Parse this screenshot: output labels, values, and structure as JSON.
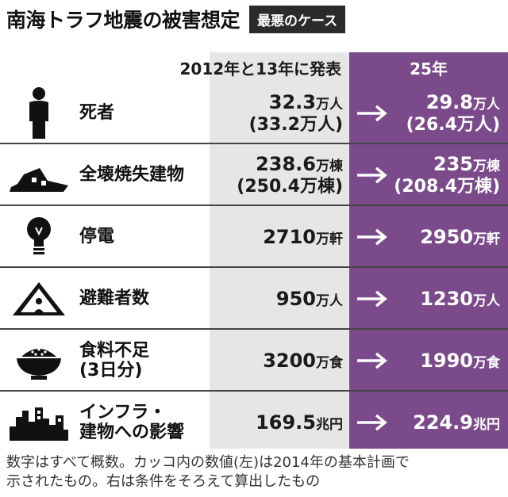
{
  "header": {
    "title": "南海トラフ地震の被害想定",
    "badge": "最悪のケース"
  },
  "columns": {
    "old": "2012年と13年に発表",
    "new": "25年"
  },
  "rows": [
    {
      "icon": "person-icon",
      "label_l1": "死者",
      "label_l2": "",
      "old_num": "32.3",
      "old_unit": "万人",
      "old_sub": "(33.2万人)",
      "new_num": "29.8",
      "new_unit": "万人",
      "new_sub": "(26.4万人)"
    },
    {
      "icon": "collapsed-building-icon",
      "label_l1": "全壊焼失建物",
      "label_l2": "",
      "old_num": "238.6",
      "old_unit": "万棟",
      "old_sub": "(250.4万棟)",
      "new_num": "235",
      "new_unit": "万棟",
      "new_sub": "(208.4万棟)"
    },
    {
      "icon": "light-bulb-icon",
      "label_l1": "停電",
      "label_l2": "",
      "old_num": "2710",
      "old_unit": "万軒",
      "old_sub": "",
      "new_num": "2950",
      "new_unit": "万軒",
      "new_sub": ""
    },
    {
      "icon": "tent-icon",
      "label_l1": "避難者数",
      "label_l2": "",
      "old_num": "950",
      "old_unit": "万人",
      "old_sub": "",
      "new_num": "1230",
      "new_unit": "万人",
      "new_sub": ""
    },
    {
      "icon": "rice-bowl-icon",
      "label_l1": "食料不足",
      "label_l2": "(3日分)",
      "old_num": "3200",
      "old_unit": "万食",
      "old_sub": "",
      "new_num": "1990",
      "new_unit": "万食",
      "new_sub": ""
    },
    {
      "icon": "city-skyline-icon",
      "label_l1": "インフラ・",
      "label_l2": "建物への影響",
      "old_num": "169.5",
      "old_unit": "兆円",
      "old_sub": "",
      "new_num": "224.9",
      "new_unit": "兆円",
      "new_sub": ""
    }
  ],
  "footnote": {
    "line1": "数字はすべて概数。カッコ内の数値(左)は2014年の基本計画で",
    "line2": "示されたもの。右は条件をそろえて算出したもの"
  },
  "colors": {
    "accent": "#7a4a8a",
    "gray": "#e6e6e6",
    "dark": "#2b2b2b"
  }
}
